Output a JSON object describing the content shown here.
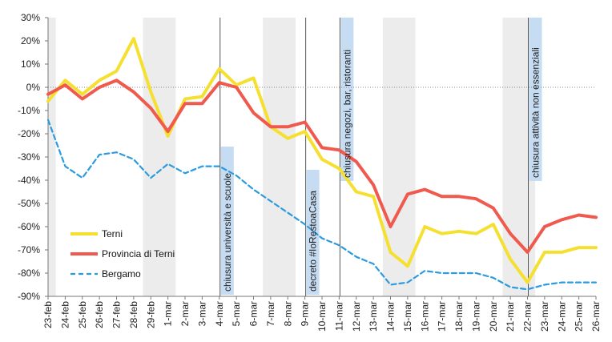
{
  "chart_data": {
    "type": "line",
    "ylim": [
      -90,
      30
    ],
    "y_ticks": [
      "30%",
      "20%",
      "10%",
      "0%",
      "-10%",
      "-20%",
      "-30%",
      "-40%",
      "-50%",
      "-60%",
      "-70%",
      "-80%",
      "-90%"
    ],
    "categories": [
      "23-feb",
      "24-feb",
      "25-feb",
      "26-feb",
      "27-feb",
      "28-feb",
      "29-feb",
      "1-mar",
      "2-mar",
      "3-mar",
      "4-mar",
      "5-mar",
      "6-mar",
      "7-mar",
      "8-mar",
      "9-mar",
      "10-mar",
      "11-mar",
      "12-mar",
      "13-mar",
      "14-mar",
      "15-mar",
      "16-mar",
      "17-mar",
      "18-mar",
      "19-mar",
      "20-mar",
      "21-mar",
      "22-mar",
      "23-mar",
      "24-mar",
      "25-mar",
      "26-mar"
    ],
    "series": [
      {
        "name": "Terni",
        "color": "#f5e031",
        "dash": "solid",
        "values": [
          -6,
          3,
          -3,
          3,
          7,
          21,
          -2,
          -21,
          -5,
          -4,
          8,
          1,
          4,
          -17,
          -22,
          -19,
          -31,
          -35,
          -45,
          -47,
          -71,
          -77,
          -60,
          -63,
          -62,
          -63,
          -59,
          -74,
          -84,
          -71,
          -71,
          -69,
          -69
        ]
      },
      {
        "name": "Provincia di Terni",
        "color": "#f05a4e",
        "dash": "solid",
        "values": [
          -3,
          1,
          -5,
          0,
          3,
          -2,
          -9,
          -19,
          -7,
          -7,
          2,
          0,
          -11,
          -17,
          -17,
          -15,
          -26,
          -27,
          -32,
          -42,
          -60,
          -46,
          -44,
          -47,
          -47,
          -48,
          -52,
          -63,
          -71,
          -60,
          -57,
          -55,
          -56
        ]
      },
      {
        "name": "Bergamo",
        "color": "#2a9be0",
        "dash": "dashed",
        "values": [
          -14,
          -34,
          -39,
          -29,
          -28,
          -31,
          -39,
          -33,
          -37,
          -34,
          -34,
          -38,
          -44,
          -49,
          -54,
          -59,
          -65,
          -68,
          -73,
          -76,
          -85,
          -84,
          -79,
          -80,
          -80,
          -80,
          -82,
          -86,
          -87,
          -85,
          -84,
          -84,
          -84
        ]
      }
    ],
    "weekend_bands": [
      [
        0,
        0
      ],
      [
        6,
        7
      ],
      [
        13,
        14
      ],
      [
        20,
        21
      ],
      [
        27,
        28
      ]
    ],
    "annotations": [
      {
        "text": "chiusura università  e scuole",
        "at_index": 10
      },
      {
        "text": "decreto #IoRestoaCasa",
        "at_index": 15
      },
      {
        "text": "chiusura negozi, bar, ristoranti",
        "at_index": 17
      },
      {
        "text": "chiusura attività non essenziali",
        "at_index": 28
      }
    ],
    "legend_position": "bottom-left",
    "grid": false
  }
}
